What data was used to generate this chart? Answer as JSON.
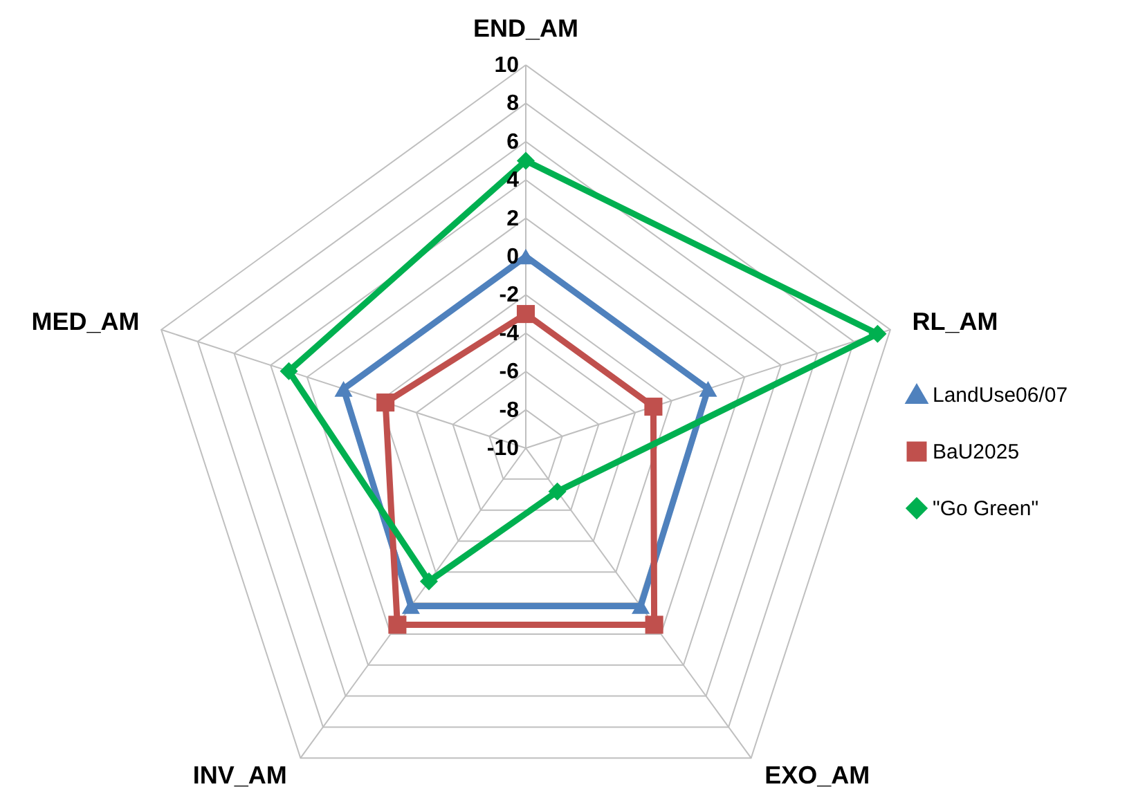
{
  "chart_data": {
    "type": "radar",
    "categories": [
      "END_AM",
      "RL_AM",
      "EXO_AM",
      "INV_AM",
      "MED_AM"
    ],
    "series": [
      {
        "name": "LandUse06/07",
        "color": "#4f81bd",
        "marker": "triangle",
        "values": [
          0,
          0,
          0.2,
          0.2,
          0
        ]
      },
      {
        "name": "BaU2025",
        "color": "#c0504d",
        "marker": "square",
        "values": [
          -3,
          -3,
          1.4,
          1.4,
          -2.3
        ]
      },
      {
        "name": "\"Go Green\"",
        "color": "#00b050",
        "marker": "diamond",
        "values": [
          5,
          9.3,
          -7.2,
          -1.4,
          3
        ]
      }
    ],
    "ylim": [
      -10,
      10
    ],
    "yticks": [
      -10,
      -8,
      -6,
      -4,
      -2,
      0,
      2,
      4,
      6,
      8,
      10
    ],
    "grid": true,
    "legend": "right"
  }
}
